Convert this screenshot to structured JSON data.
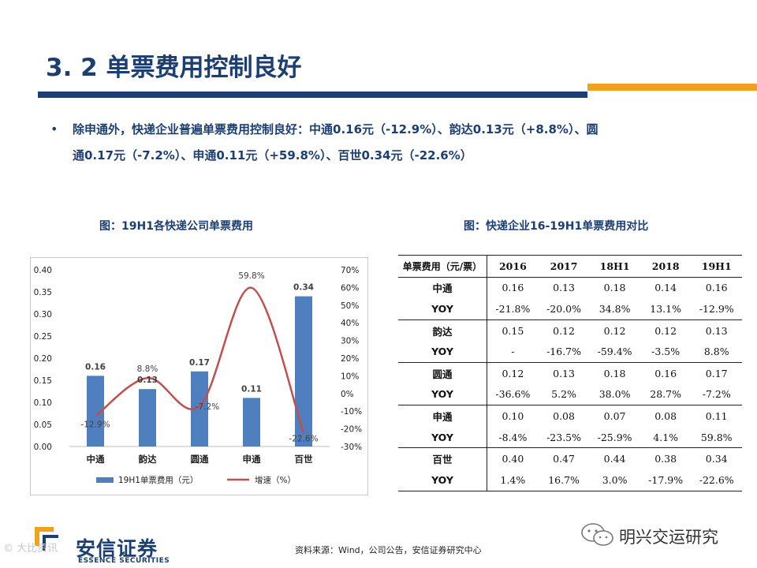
{
  "title": "3. 2 单票费用控制良好",
  "bullet_symbol": "•",
  "body": {
    "line1": "除申通外，快递企业普遍单票费用控制良好：中通0.16元（-12.9%）、韵达0.13元（+8.8%）、圆",
    "line2": "通0.17元（-7.2%）、申通0.11元（+59.8%）、百世0.34元（-22.6%）"
  },
  "left_figure_title": "图：19H1各快递公司单票费用",
  "right_figure_title": "图：快递企业16-19H1单票费用对比",
  "colors": {
    "primary": "#1c3f73",
    "accent": "#f2a11c",
    "bar": "#4f7fbf",
    "line": "#c0504d"
  },
  "chart_data": {
    "type": "bar+line",
    "categories": [
      "中通",
      "韵达",
      "圆通",
      "申通",
      "百世"
    ],
    "series": [
      {
        "name": "19H1单票费用（元）",
        "type": "bar",
        "axis": "left",
        "values": [
          0.16,
          0.13,
          0.17,
          0.11,
          0.34
        ],
        "labels": [
          "0.16",
          "0.13",
          "0.17",
          "0.11",
          "0.34"
        ]
      },
      {
        "name": "增速（%）",
        "type": "line",
        "axis": "right",
        "values": [
          -12.9,
          8.8,
          -7.2,
          59.8,
          -22.6
        ],
        "labels": [
          "-12.9%",
          "8.8%",
          "-7.2%",
          "59.8%",
          "-22.6%"
        ]
      }
    ],
    "y_left": {
      "min": 0,
      "max": 0.4,
      "ticks": [
        "0.00",
        "0.05",
        "0.10",
        "0.15",
        "0.20",
        "0.25",
        "0.30",
        "0.35",
        "0.40"
      ]
    },
    "y_right": {
      "min": -30,
      "max": 70,
      "ticks": [
        "-30%",
        "-20%",
        "-10%",
        "0%",
        "10%",
        "20%",
        "30%",
        "40%",
        "50%",
        "60%",
        "70%"
      ]
    },
    "legend_position": "bottom",
    "grid": false
  },
  "table": {
    "headers": [
      "单票费用（元/票）",
      "2016",
      "2017",
      "18H1",
      "2018",
      "19H1"
    ],
    "rows": [
      [
        "中通",
        "0.16",
        "0.13",
        "0.18",
        "0.14",
        "0.16"
      ],
      [
        "YOY",
        "-21.8%",
        "-20.0%",
        "34.8%",
        "13.1%",
        "-12.9%"
      ],
      [
        "韵达",
        "0.15",
        "0.12",
        "0.12",
        "0.12",
        "0.13"
      ],
      [
        "YOY",
        "-",
        "-16.7%",
        "-59.4%",
        "-3.5%",
        "8.8%"
      ],
      [
        "圆通",
        "0.12",
        "0.13",
        "0.18",
        "0.16",
        "0.17"
      ],
      [
        "YOY",
        "-36.6%",
        "5.2%",
        "38.0%",
        "28.7%",
        "-7.2%"
      ],
      [
        "申通",
        "0.10",
        "0.08",
        "0.07",
        "0.08",
        "0.11"
      ],
      [
        "YOY",
        "-8.4%",
        "-23.5%",
        "-25.9%",
        "4.1%",
        "59.8%"
      ],
      [
        "百世",
        "0.40",
        "0.47",
        "0.44",
        "0.38",
        "0.34"
      ],
      [
        "YOY",
        "1.4%",
        "16.7%",
        "3.0%",
        "-17.9%",
        "-22.6%"
      ]
    ]
  },
  "source": "资料来源：Wind，公司公告，安信证券研究中心",
  "logo": {
    "name": "安信证券",
    "subtitle": "ESSENCE SECURITIES"
  },
  "watermark_left": "©  大比资讯",
  "wechat_account": "明兴交运研究",
  "icons": {
    "logo": "essence-logo-icon",
    "wechat": "wechat-icon"
  }
}
